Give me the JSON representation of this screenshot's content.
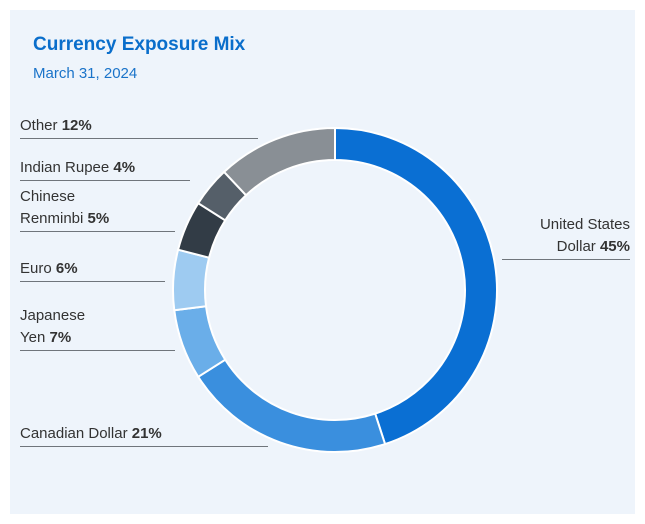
{
  "chart_data": {
    "type": "donut",
    "title": "Currency Exposure Mix",
    "subtitle": "March 31, 2024",
    "categories": [
      "United States Dollar",
      "Canadian Dollar",
      "Japanese Yen",
      "Euro",
      "Chinese Renminbi",
      "Indian Rupee",
      "Other"
    ],
    "values": [
      45,
      21,
      7,
      6,
      5,
      4,
      12
    ],
    "value_labels": [
      "45%",
      "21%",
      "7%",
      "6%",
      "5%",
      "4%",
      "12%"
    ],
    "colors": [
      "#0a6fd3",
      "#3a8fde",
      "#6aaee9",
      "#9ecbf1",
      "#323c46",
      "#555f69",
      "#898f95"
    ]
  }
}
